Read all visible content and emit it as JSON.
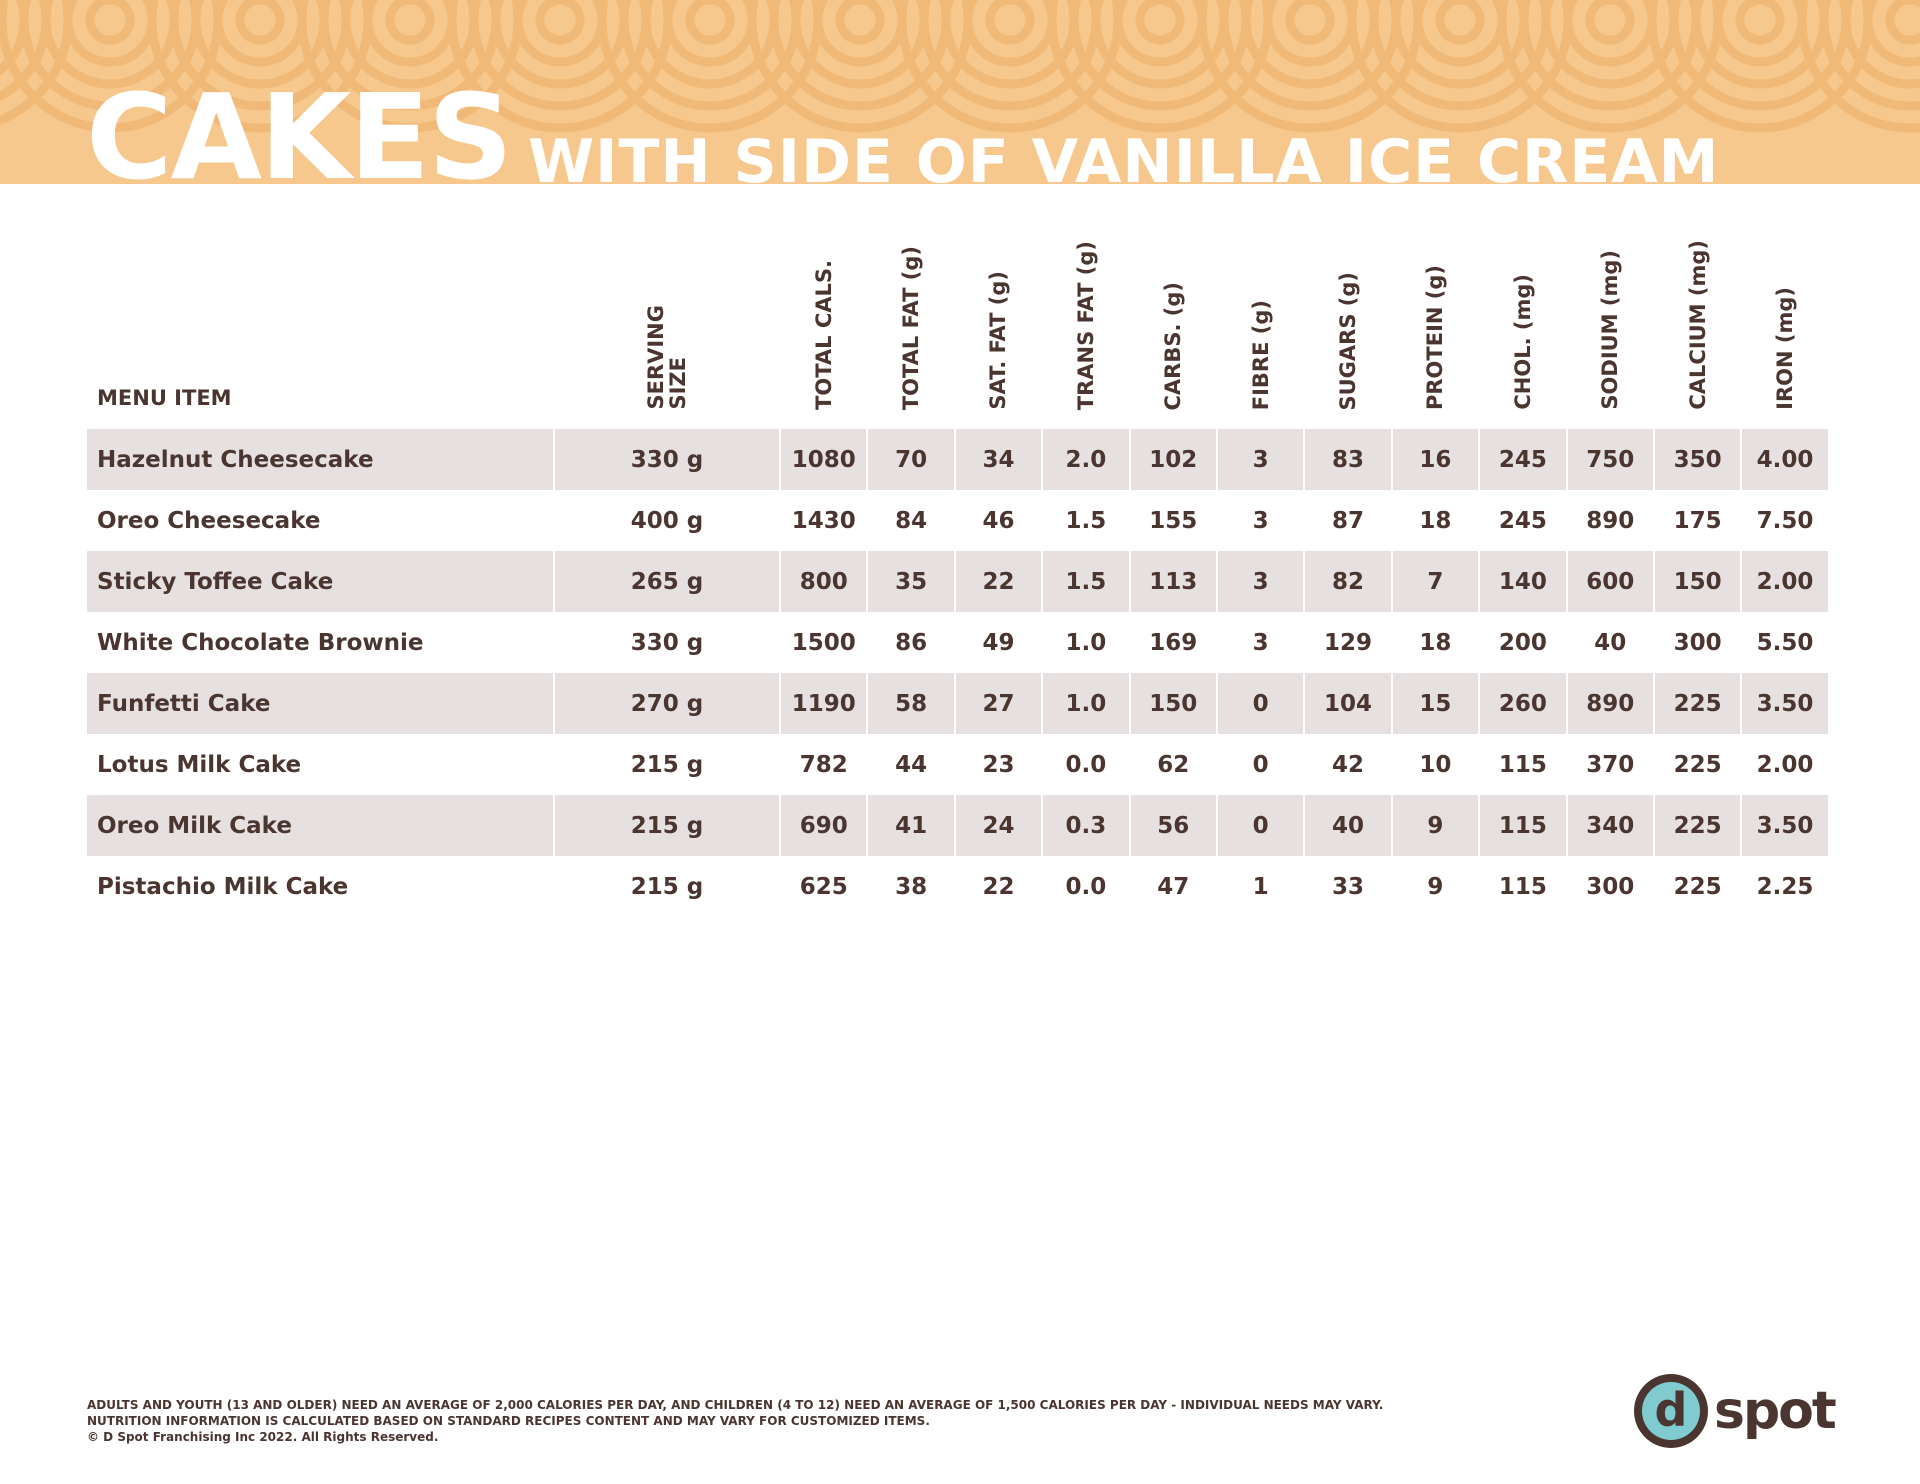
{
  "header": {
    "title": "CAKES",
    "subtitle": "WITH SIDE OF VANILLA ICE CREAM"
  },
  "table": {
    "columns": [
      "MENU ITEM",
      "SERVING\nSIZE",
      "TOTAL CALS.",
      "TOTAL FAT (g)",
      "SAT. FAT (g)",
      "TRANS FAT (g)",
      "CARBS. (g)",
      "FIBRE (g)",
      "SUGARS (g)",
      "PROTEIN (g)",
      "CHOL. (mg)",
      "SODIUM (mg)",
      "CALCIUM (mg)",
      "IRON (mg)"
    ],
    "rows": [
      [
        "Hazelnut Cheesecake",
        "330 g",
        "1080",
        "70",
        "34",
        "2.0",
        "102",
        "3",
        "83",
        "16",
        "245",
        "750",
        "350",
        "4.00"
      ],
      [
        "Oreo Cheesecake",
        "400 g",
        "1430",
        "84",
        "46",
        "1.5",
        "155",
        "3",
        "87",
        "18",
        "245",
        "890",
        "175",
        "7.50"
      ],
      [
        "Sticky Toffee Cake",
        "265 g",
        "800",
        "35",
        "22",
        "1.5",
        "113",
        "3",
        "82",
        "7",
        "140",
        "600",
        "150",
        "2.00"
      ],
      [
        "White Chocolate Brownie",
        "330 g",
        "1500",
        "86",
        "49",
        "1.0",
        "169",
        "3",
        "129",
        "18",
        "200",
        "40",
        "300",
        "5.50"
      ],
      [
        "Funfetti Cake",
        "270 g",
        "1190",
        "58",
        "27",
        "1.0",
        "150",
        "0",
        "104",
        "15",
        "260",
        "890",
        "225",
        "3.50"
      ],
      [
        "Lotus Milk Cake",
        "215 g",
        "782",
        "44",
        "23",
        "0.0",
        "62",
        "0",
        "42",
        "10",
        "115",
        "370",
        "225",
        "2.00"
      ],
      [
        "Oreo Milk Cake",
        "215 g",
        "690",
        "41",
        "24",
        "0.3",
        "56",
        "0",
        "40",
        "9",
        "115",
        "340",
        "225",
        "3.50"
      ],
      [
        "Pistachio Milk Cake",
        "215 g",
        "625",
        "38",
        "22",
        "0.0",
        "47",
        "1",
        "33",
        "9",
        "115",
        "300",
        "225",
        "2.25"
      ]
    ]
  },
  "footer": {
    "lines": [
      "ADULTS AND YOUTH (13 AND OLDER) NEED AN AVERAGE OF 2,000 CALORIES PER DAY, AND CHILDREN (4 TO 12) NEED AN AVERAGE OF 1,500 CALORIES PER DAY - INDIVIDUAL NEEDS MAY VARY.",
      "NUTRITION INFORMATION IS CALCULATED BASED ON STANDARD RECIPES CONTENT AND MAY VARY FOR CUSTOMIZED ITEMS.",
      "© D Spot Franchising Inc 2022. All Rights Reserved."
    ]
  },
  "logo": {
    "letter": "d",
    "word": "spot"
  }
}
